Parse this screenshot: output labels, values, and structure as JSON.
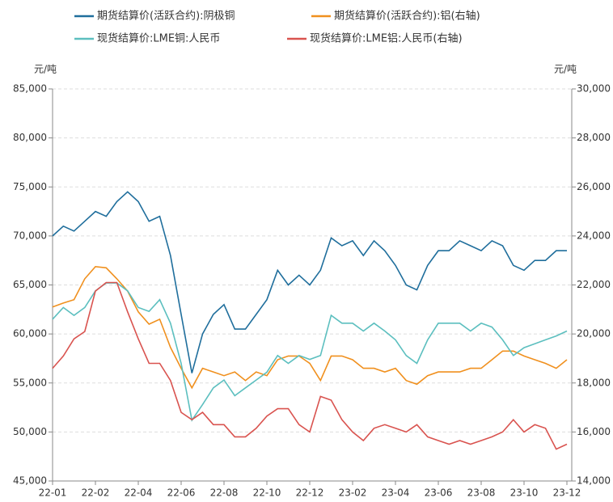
{
  "chart_data": {
    "type": "line",
    "ylabel": "元/吨",
    "y2label": "元/吨",
    "categories": [
      "22-01",
      null,
      null,
      null,
      "22-02",
      null,
      null,
      null,
      "22-04",
      null,
      null,
      null,
      "22-06",
      null,
      null,
      null,
      "22-08",
      null,
      null,
      null,
      "22-10",
      null,
      null,
      null,
      "22-12",
      null,
      null,
      null,
      "23-02",
      null,
      null,
      null,
      "23-04",
      null,
      null,
      null,
      "23-06",
      null,
      null,
      null,
      "23-08",
      null,
      null,
      null,
      "23-10",
      null,
      null,
      null,
      "23-12"
    ],
    "ylim": [
      45000,
      85000
    ],
    "yticks": [
      {
        "value": 45000,
        "label": "45,000"
      },
      {
        "value": 50000,
        "label": "50,000"
      },
      {
        "value": 55000,
        "label": "55,000"
      },
      {
        "value": 60000,
        "label": "60,000"
      },
      {
        "value": 65000,
        "label": "65,000"
      },
      {
        "value": 70000,
        "label": "70,000"
      },
      {
        "value": 75000,
        "label": "75,000"
      },
      {
        "value": 80000,
        "label": "80,000"
      },
      {
        "value": 85000,
        "label": "85,000"
      }
    ],
    "y2lim": [
      14000,
      30000
    ],
    "y2ticks": [
      {
        "value": 14000,
        "label": "14,000"
      },
      {
        "value": 16000,
        "label": "16,000"
      },
      {
        "value": 18000,
        "label": "18,000"
      },
      {
        "value": 20000,
        "label": "20,000"
      },
      {
        "value": 22000,
        "label": "22,000"
      },
      {
        "value": 24000,
        "label": "24,000"
      },
      {
        "value": 26000,
        "label": "26,000"
      },
      {
        "value": 28000,
        "label": "28,000"
      },
      {
        "value": 30000,
        "label": "30,000"
      }
    ],
    "grid": true,
    "series": [
      {
        "name": "期货结算价(活跃合约):阴极铜",
        "color": "#1f6e9c",
        "values": [
          70000,
          71000,
          70500,
          71500,
          72500,
          72000,
          73500,
          74500,
          73500,
          71500,
          72000,
          68000,
          62000,
          56000,
          60000,
          62000,
          63000,
          60500,
          60500,
          62000,
          63500,
          66500,
          65000,
          66000,
          65000,
          66500,
          69800,
          69000,
          69500,
          68000,
          69500,
          68500,
          67000,
          65000,
          64500,
          67000,
          68500,
          68500,
          69500,
          69000,
          68500,
          69500,
          69000,
          67000,
          66500,
          67500,
          67500,
          68500,
          68500
        ]
      },
      {
        "name": "期货结算价(活跃合约):铝(右轴)",
        "color": "#f0901e",
        "axis": "y2",
        "values": [
          21100,
          21260,
          21400,
          22250,
          22750,
          22700,
          22250,
          21750,
          20900,
          20400,
          20600,
          19450,
          18600,
          17800,
          18600,
          18450,
          18300,
          18450,
          18100,
          18450,
          18300,
          18950,
          19100,
          19100,
          18800,
          18100,
          19100,
          19100,
          18950,
          18600,
          18600,
          18450,
          18600,
          18100,
          17950,
          18300,
          18450,
          18450,
          18450,
          18600,
          18600,
          18950,
          19300,
          19300,
          19100,
          18950,
          18800,
          18600,
          18950
        ]
      },
      {
        "name": "现货结算价:LME铜:人民币",
        "color": "#5cbfbf",
        "values": [
          61500,
          62700,
          61900,
          62700,
          64400,
          65200,
          65200,
          64400,
          62700,
          62300,
          63500,
          61100,
          57000,
          51200,
          52800,
          54500,
          55300,
          53700,
          54500,
          55300,
          56100,
          57800,
          57000,
          57800,
          57400,
          57800,
          61900,
          61100,
          61100,
          60300,
          61100,
          60300,
          59400,
          57800,
          57000,
          59400,
          61100,
          61100,
          61100,
          60300,
          61100,
          60700,
          59400,
          57800,
          58600,
          59000,
          59400,
          59800,
          60300
        ]
      },
      {
        "name": "现货结算价:LME铝:人民币(右轴)",
        "color": "#d9534f",
        "axis": "y2",
        "values": [
          18600,
          19100,
          19800,
          20100,
          21750,
          22100,
          22100,
          20900,
          19800,
          18800,
          18800,
          18100,
          16800,
          16500,
          16800,
          16300,
          16300,
          15800,
          15800,
          16150,
          16650,
          16950,
          16950,
          16300,
          16000,
          17450,
          17300,
          16500,
          16000,
          15650,
          16150,
          16300,
          16150,
          16000,
          16300,
          15800,
          15650,
          15500,
          15650,
          15500,
          15650,
          15800,
          16000,
          16500,
          16000,
          16300,
          16150,
          15300,
          15500
        ]
      }
    ]
  }
}
